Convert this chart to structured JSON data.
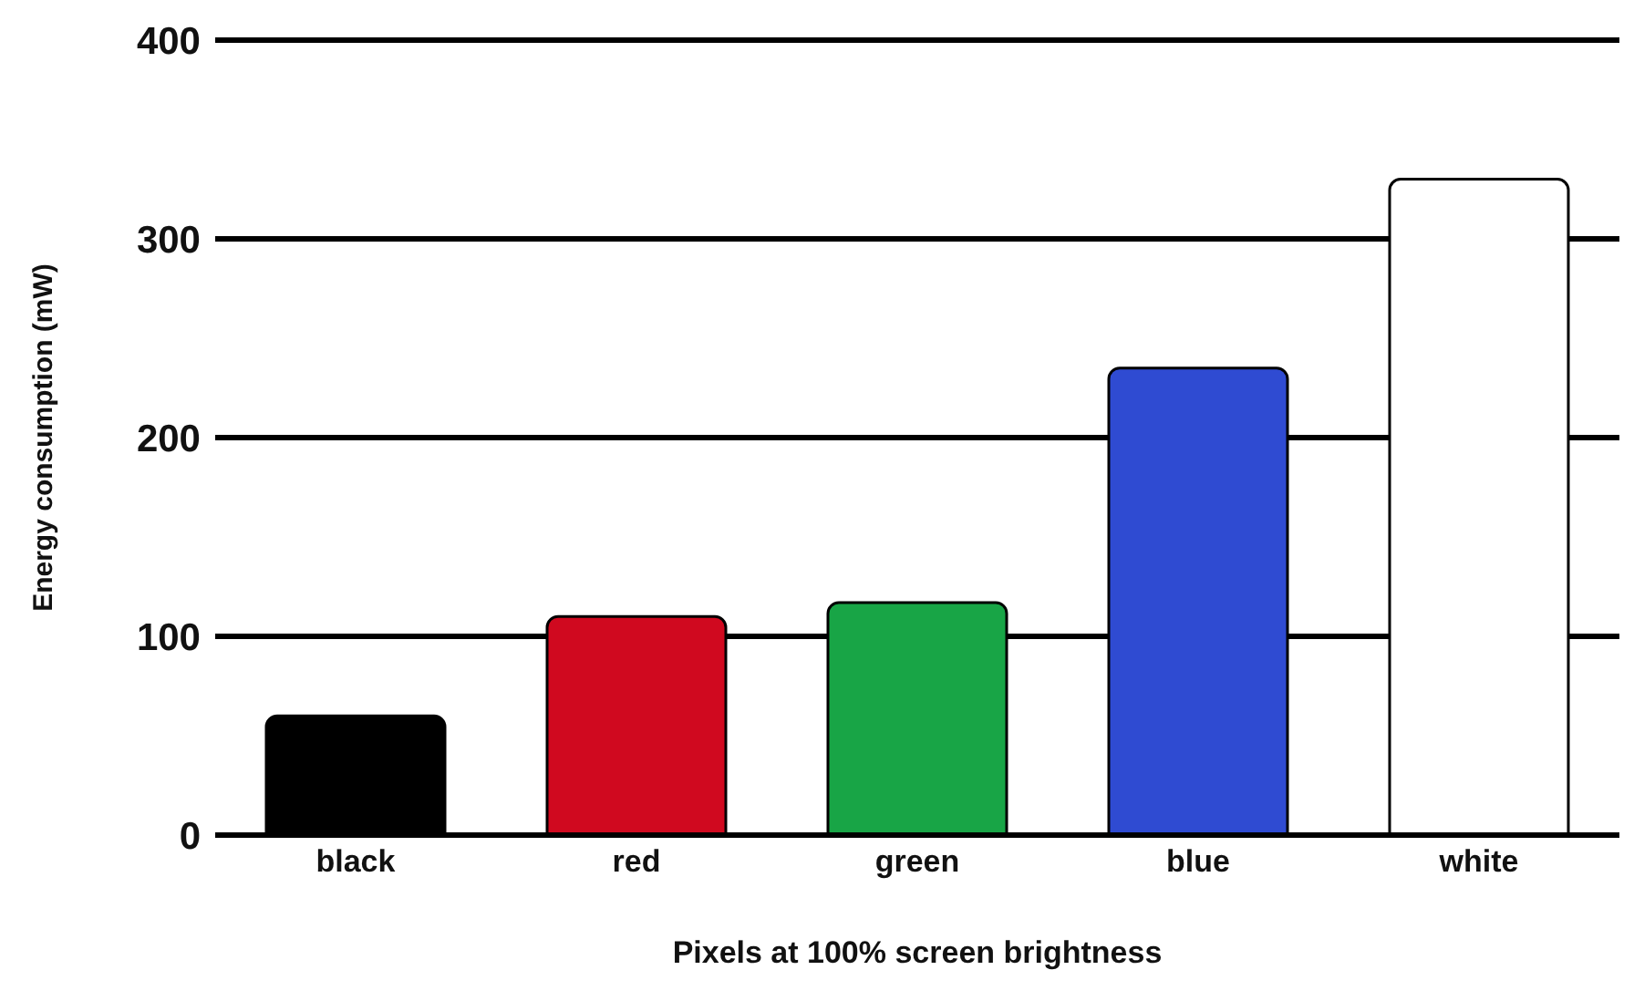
{
  "chart_data": {
    "type": "bar",
    "xlabel": "Pixels at 100% screen brightness",
    "ylabel": "Energy consumption (mW)",
    "categories": [
      "black",
      "red",
      "green",
      "blue",
      "white"
    ],
    "values": [
      60,
      110,
      117,
      235,
      330
    ],
    "colors": [
      "#000000",
      "#d0091f",
      "#18a546",
      "#2f4bd2",
      "#ffffff"
    ],
    "ylim": [
      0,
      400
    ],
    "yticks": [
      0,
      100,
      200,
      300,
      400
    ],
    "grid": "y"
  }
}
